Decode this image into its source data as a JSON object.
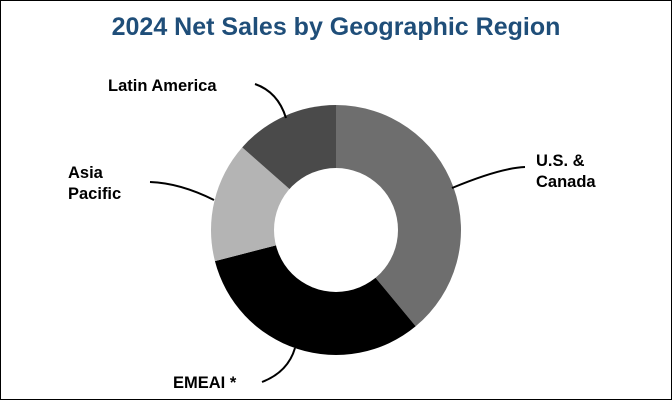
{
  "chart_data": {
    "type": "pie",
    "style": "donut",
    "title": "2024 Net Sales by Geographic Region",
    "categories": [
      "U.S. & Canada",
      "EMEAI *",
      "Asia Pacific",
      "Latin America"
    ],
    "values": [
      39,
      32,
      15.5,
      13.5
    ],
    "colors": [
      "#6e6e6e",
      "#000000",
      "#b4b4b4",
      "#4a4a4a"
    ],
    "label_lines": [
      [
        "U.S. &",
        "Canada"
      ],
      [
        "EMEAI *"
      ],
      [
        "Asia",
        "Pacific"
      ],
      [
        "Latin America"
      ]
    ],
    "start_angle_deg": 0,
    "direction": "clockwise",
    "legend": "none",
    "grid": false
  }
}
